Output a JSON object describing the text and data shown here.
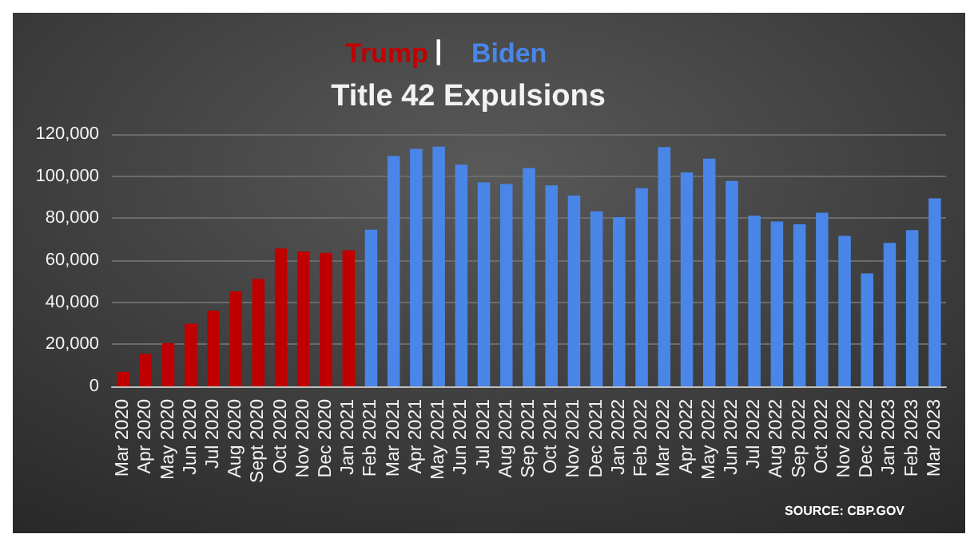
{
  "chart_data": {
    "type": "bar",
    "title": "Title 42 Expulsions",
    "categories": [
      "Mar 2020",
      "Apr 2020",
      "May 2020",
      "Jun 2020",
      "Jul 2020",
      "Aug 2020",
      "Sept 2020",
      "Oct 2020",
      "Nov 2020",
      "Dec 2020",
      "Jan 2021",
      "Feb 2021",
      "Mar 2021",
      "Apr 2021",
      "May 2021",
      "Jun 2021",
      "Jul 2021",
      "Aug 2021",
      "Sep 2021",
      "Oct 2021",
      "Nov 2021",
      "Dec 2021",
      "Jan 2022",
      "Feb 2022",
      "Mar 2022",
      "Apr 2022",
      "May 2022",
      "Jun 2022",
      "Jul 2022",
      "Aug 2022",
      "Sep 2022",
      "Oct 2022",
      "Nov 2022",
      "Dec 2022",
      "Jan 2023",
      "Feb 2023",
      "Mar 2023"
    ],
    "series": [
      {
        "name": "Trump",
        "color": "#c00000",
        "values": [
          6900,
          15400,
          20600,
          29800,
          36000,
          45200,
          51100,
          65600,
          64200,
          63500,
          64700,
          null,
          null,
          null,
          null,
          null,
          null,
          null,
          null,
          null,
          null,
          null,
          null,
          null,
          null,
          null,
          null,
          null,
          null,
          null,
          null,
          null,
          null,
          null,
          null,
          null,
          null
        ]
      },
      {
        "name": "Biden",
        "color": "#4a86e8",
        "values": [
          null,
          null,
          null,
          null,
          null,
          null,
          null,
          null,
          null,
          null,
          null,
          74500,
          109600,
          113000,
          114000,
          105500,
          97000,
          96300,
          103900,
          95600,
          90800,
          83300,
          80500,
          94300,
          113800,
          101800,
          108300,
          97700,
          81200,
          78400,
          77100,
          82600,
          71600,
          53700,
          68300,
          74300,
          89400
        ]
      }
    ],
    "ylim": [
      0,
      120000
    ],
    "yticks": [
      0,
      {
        "value": 20000,
        "label": "20,000"
      },
      {
        "value": 40000,
        "label": "40,000"
      },
      {
        "value": 60000,
        "label": "60,000"
      },
      {
        "value": 80000,
        "label": "80,000"
      },
      {
        "value": 100000,
        "label": "100,000"
      },
      {
        "value": 120000,
        "label": "120,000"
      }
    ],
    "grid": "y",
    "legend": "top",
    "annotations": [
      "|",
      "SOURCE: CBP.GOV"
    ]
  }
}
